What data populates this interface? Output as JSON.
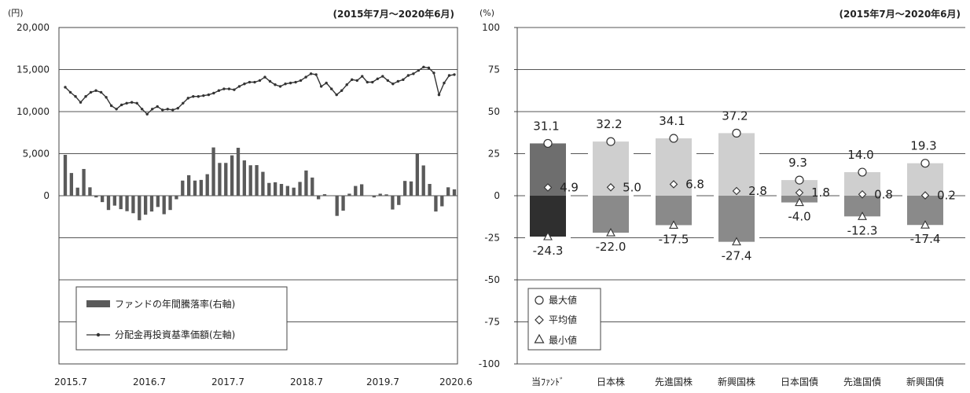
{
  "chart_data": [
    {
      "type": "bar+line",
      "period_note": "(2015年7月～2020年6月)",
      "left_axis_unit": "(円)",
      "left_axis_ticks": [
        "20,000",
        "15,000",
        "10,000",
        "5,000",
        "0"
      ],
      "left_axis_tick_values": [
        20000,
        15000,
        10000,
        5000,
        0
      ],
      "ylim_left": [
        -20000,
        20000
      ],
      "x_tick_labels": [
        "2015.7",
        "2016.7",
        "2017.7",
        "2018.7",
        "2019.7",
        "2020.6"
      ],
      "legend": [
        {
          "label": "ファンドの年間騰落率(右軸)",
          "kind": "bar"
        },
        {
          "label": "分配金再投資基準価額(左軸)",
          "kind": "line"
        }
      ],
      "series": [
        {
          "name": "分配金再投資基準価額(左軸)",
          "axis": "left",
          "values": [
            12900,
            12300,
            11800,
            11100,
            11800,
            12300,
            12500,
            12300,
            11700,
            10700,
            10300,
            10800,
            11000,
            11100,
            11000,
            10300,
            9700,
            10300,
            10600,
            10200,
            10300,
            10200,
            10400,
            11000,
            11600,
            11800,
            11800,
            11900,
            12000,
            12200,
            12500,
            12700,
            12700,
            12600,
            13000,
            13300,
            13500,
            13500,
            13700,
            14100,
            13600,
            13200,
            13000,
            13300,
            13400,
            13500,
            13700,
            14100,
            14500,
            14400,
            13000,
            13400,
            12700,
            12000,
            12500,
            13200,
            13800,
            13700,
            14200,
            13500,
            13500,
            13900,
            14200,
            13700,
            13300,
            13600,
            13800,
            14300,
            14500,
            14900,
            15300,
            15200,
            14600,
            12000,
            13400,
            14300,
            14400
          ]
        },
        {
          "name": "ファンドの年間騰落率(右軸)",
          "axis": "right",
          "values": [
            24.3,
            13.5,
            4.8,
            15.9,
            5.0,
            -1.0,
            -3.8,
            -8.5,
            -5.9,
            -8.0,
            -9.2,
            -10.4,
            -14.6,
            -11.3,
            -9.4,
            -6.7,
            -11.0,
            -8.5,
            -2.1,
            9.0,
            12.2,
            9.0,
            9.4,
            12.8,
            28.7,
            19.5,
            19.5,
            24.0,
            28.5,
            21.0,
            18.1,
            18.2,
            14.2,
            7.6,
            8.0,
            7.0,
            5.8,
            4.8,
            8.2,
            15.0,
            10.8,
            -2.1,
            0.9,
            0.0,
            -12.0,
            -8.9,
            1.2,
            5.8,
            6.8,
            0.0,
            -1.0,
            1.2,
            0.8,
            -8.2,
            -5.5,
            8.8,
            8.5,
            24.8,
            18.0,
            7.0,
            -9.4,
            -6.3,
            5.0,
            3.8
          ]
        }
      ]
    },
    {
      "type": "bar",
      "period_note": "(2015年7月～2020年6月)",
      "axis_unit": "(%)",
      "ylim": [
        -100,
        100
      ],
      "y_ticks": [
        100,
        75,
        50,
        25,
        0,
        -25,
        -50,
        -75,
        -100
      ],
      "categories": [
        "当ﾌｧﾝﾄﾞ",
        "日本株",
        "先進国株",
        "新興国株",
        "日本国債",
        "先進国債",
        "新興国債"
      ],
      "max_values": [
        31.1,
        32.2,
        34.1,
        37.2,
        9.3,
        14.0,
        19.3
      ],
      "avg_values": [
        4.9,
        5.0,
        6.8,
        2.8,
        1.8,
        0.8,
        0.2
      ],
      "min_values": [
        -24.3,
        -22.0,
        -17.5,
        -27.4,
        -4.0,
        -12.3,
        -17.4
      ],
      "max_labels": [
        "31.1",
        "32.2",
        "34.1",
        "37.2",
        "9.3",
        "14.0",
        "19.3"
      ],
      "avg_labels": [
        "4.9",
        "5.0",
        "6.8",
        "2.8",
        "1.8",
        "0.8",
        "0.2"
      ],
      "min_labels": [
        "-24.3",
        "-22.0",
        "-17.5",
        "-27.4",
        "-4.0",
        "-12.3",
        "-17.4"
      ],
      "legend": [
        {
          "label": "最大値",
          "marker": "circle"
        },
        {
          "label": "平均値",
          "marker": "diamond"
        },
        {
          "label": "最小値",
          "marker": "triangle"
        }
      ],
      "colors": {
        "fund_pos": "#6e6e6e",
        "fund_neg": "#2f2f2f",
        "other_pos": "#cfcfcf",
        "other_neg": "#8a8a8a"
      }
    }
  ]
}
